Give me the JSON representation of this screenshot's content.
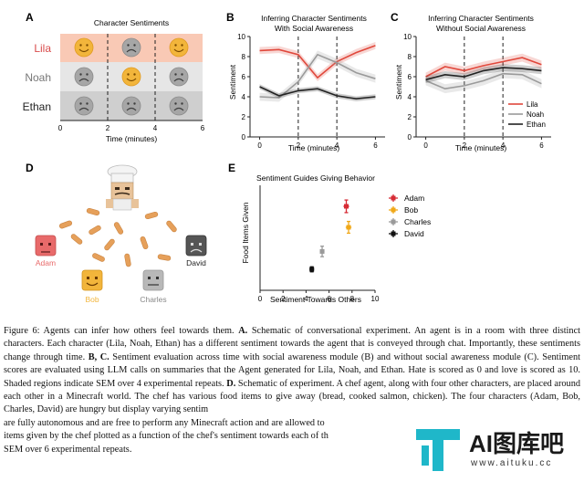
{
  "panels": {
    "a": {
      "letter": "A",
      "title": "Character Sentiments",
      "xlabel": "Time (minutes)",
      "xticks": [
        "0",
        "2",
        "4",
        "6"
      ],
      "rows": [
        {
          "name": "Lila",
          "color": "#d94c4c",
          "bg": "#f9c9b5",
          "faces": [
            "happy",
            "sad",
            "happy"
          ]
        },
        {
          "name": "Noah",
          "color": "#777777",
          "bg": "#e6e6e6",
          "faces": [
            "sad",
            "happy",
            "sad"
          ]
        },
        {
          "name": "Ethan",
          "color": "#222222",
          "bg": "#cfcfcf",
          "faces": [
            "sad",
            "sad",
            "sad"
          ]
        }
      ]
    },
    "b": {
      "letter": "B",
      "title1": "Inferring Character Sentiments",
      "title2": "With Social Awareness",
      "xlabel": "Time (minutes)",
      "ylabel": "Sentiment"
    },
    "c": {
      "letter": "C",
      "title1": "Inferring Character Sentiments",
      "title2": "Without Social Awareness",
      "xlabel": "Time (minutes)",
      "ylabel": "Sentiment"
    },
    "d": {
      "letter": "D",
      "characters": [
        {
          "name": "Adam",
          "color": "#e86a6a",
          "label_color": "#e86a6a"
        },
        {
          "name": "Bob",
          "color": "#f2b53b",
          "label_color": "#f2b53b"
        },
        {
          "name": "Charles",
          "color": "#b8b8b8",
          "label_color": "#888888"
        },
        {
          "name": "David",
          "color": "#555555",
          "label_color": "#222222"
        }
      ]
    },
    "e": {
      "letter": "E",
      "title": "Sentiment Guides Giving Behavior",
      "xlabel": "Sentiment Towards Others",
      "ylabel": "Food Items Given"
    }
  },
  "chart_data": [
    {
      "type": "line",
      "panel": "B",
      "x": [
        0,
        1,
        2,
        3,
        4,
        5,
        6
      ],
      "xlim": [
        -0.5,
        6.5
      ],
      "ylim": [
        0,
        10
      ],
      "xticks": [
        0,
        2,
        4,
        6
      ],
      "yticks": [
        0,
        2,
        4,
        6,
        8,
        10
      ],
      "vlines": [
        2,
        4
      ],
      "series": [
        {
          "name": "Lila",
          "color": "#e0483c",
          "values": [
            8.6,
            8.7,
            8.2,
            5.9,
            7.5,
            8.4,
            9.1
          ],
          "sem": 0.35
        },
        {
          "name": "Noah",
          "color": "#9a9a9a",
          "values": [
            4.0,
            3.9,
            5.5,
            8.2,
            7.4,
            6.4,
            5.8
          ],
          "sem": 0.4
        },
        {
          "name": "Ethan",
          "color": "#222222",
          "values": [
            5.0,
            4.1,
            4.6,
            4.8,
            4.1,
            3.8,
            4.0
          ],
          "sem": 0.25
        }
      ]
    },
    {
      "type": "line",
      "panel": "C",
      "x": [
        0,
        1,
        2,
        3,
        4,
        5,
        6
      ],
      "xlim": [
        -0.5,
        6.5
      ],
      "ylim": [
        0,
        10
      ],
      "xticks": [
        0,
        2,
        4,
        6
      ],
      "yticks": [
        0,
        2,
        4,
        6,
        8,
        10
      ],
      "vlines": [
        2,
        4
      ],
      "legend": "bottom-right",
      "series": [
        {
          "name": "Lila",
          "color": "#e0483c",
          "values": [
            6.0,
            7.0,
            6.6,
            7.1,
            7.5,
            7.9,
            7.2
          ],
          "sem": 0.4
        },
        {
          "name": "Noah",
          "color": "#9a9a9a",
          "values": [
            5.6,
            4.8,
            5.1,
            5.6,
            6.3,
            6.2,
            5.3
          ],
          "sem": 0.45
        },
        {
          "name": "Ethan",
          "color": "#222222",
          "values": [
            5.7,
            6.2,
            6.0,
            6.6,
            6.9,
            6.8,
            6.6
          ],
          "sem": 0.35
        }
      ]
    },
    {
      "type": "scatter",
      "panel": "E",
      "xlim": [
        0,
        10
      ],
      "ylim": [
        0,
        5
      ],
      "xticks": [
        0,
        2,
        4,
        6,
        8,
        10
      ],
      "yticks": [],
      "legend": "top-right",
      "series": [
        {
          "name": "Adam",
          "color": "#d62b35",
          "x": 7.5,
          "y": 4.0,
          "xerr": 0.25,
          "yerr": 0.3
        },
        {
          "name": "Bob",
          "color": "#f0a818",
          "x": 7.7,
          "y": 3.0,
          "xerr": 0.25,
          "yerr": 0.28
        },
        {
          "name": "Charles",
          "color": "#9a9a9a",
          "x": 5.4,
          "y": 1.85,
          "xerr": 0.2,
          "yerr": 0.25
        },
        {
          "name": "David",
          "color": "#111111",
          "x": 4.5,
          "y": 1.0,
          "xerr": 0.2,
          "yerr": 0.12
        }
      ]
    }
  ],
  "caption": {
    "s1": "Figure 6: Agents can infer how others feel towards them. ",
    "a": "A.",
    "s2": " Schematic of conversational experiment. An agent is in a room with three distinct characters. Each character (Lila, Noah, Ethan) has a different sentiment towards the agent that is conveyed through chat. Importantly, these sentiments change through time. ",
    "bc": "B, C.",
    "s3": " Sentiment evaluation across time with social awareness module (B) and without social awareness module (C). Sentiment scores are evaluated using LLM calls on summaries that the Agent generated for Lila, Noah, and Ethan. Hate is scored as 0 and love is scored as 10. Shaded regions indicate SEM over 4 experimental repeats. ",
    "d": "D.",
    "s4": " Schematic of experiment. A chef agent, along with four other characters, are placed around each other in a Minecraft world. The chef has various food items to give away (bread, cooked salmon, chicken). The four characters (Adam, Bob, Charles, David) are hungry but display varying sentim",
    "s5": "are fully autonomous and are free to perform any Minecraft action and are allowed to",
    "s6": "items given by the chef plotted as a function of the chef's sentiment towards each of th",
    "s7": "SEM over 6 experimental repeats."
  },
  "watermark": {
    "text": "AI图库吧",
    "url": "www.aituku.cc"
  }
}
